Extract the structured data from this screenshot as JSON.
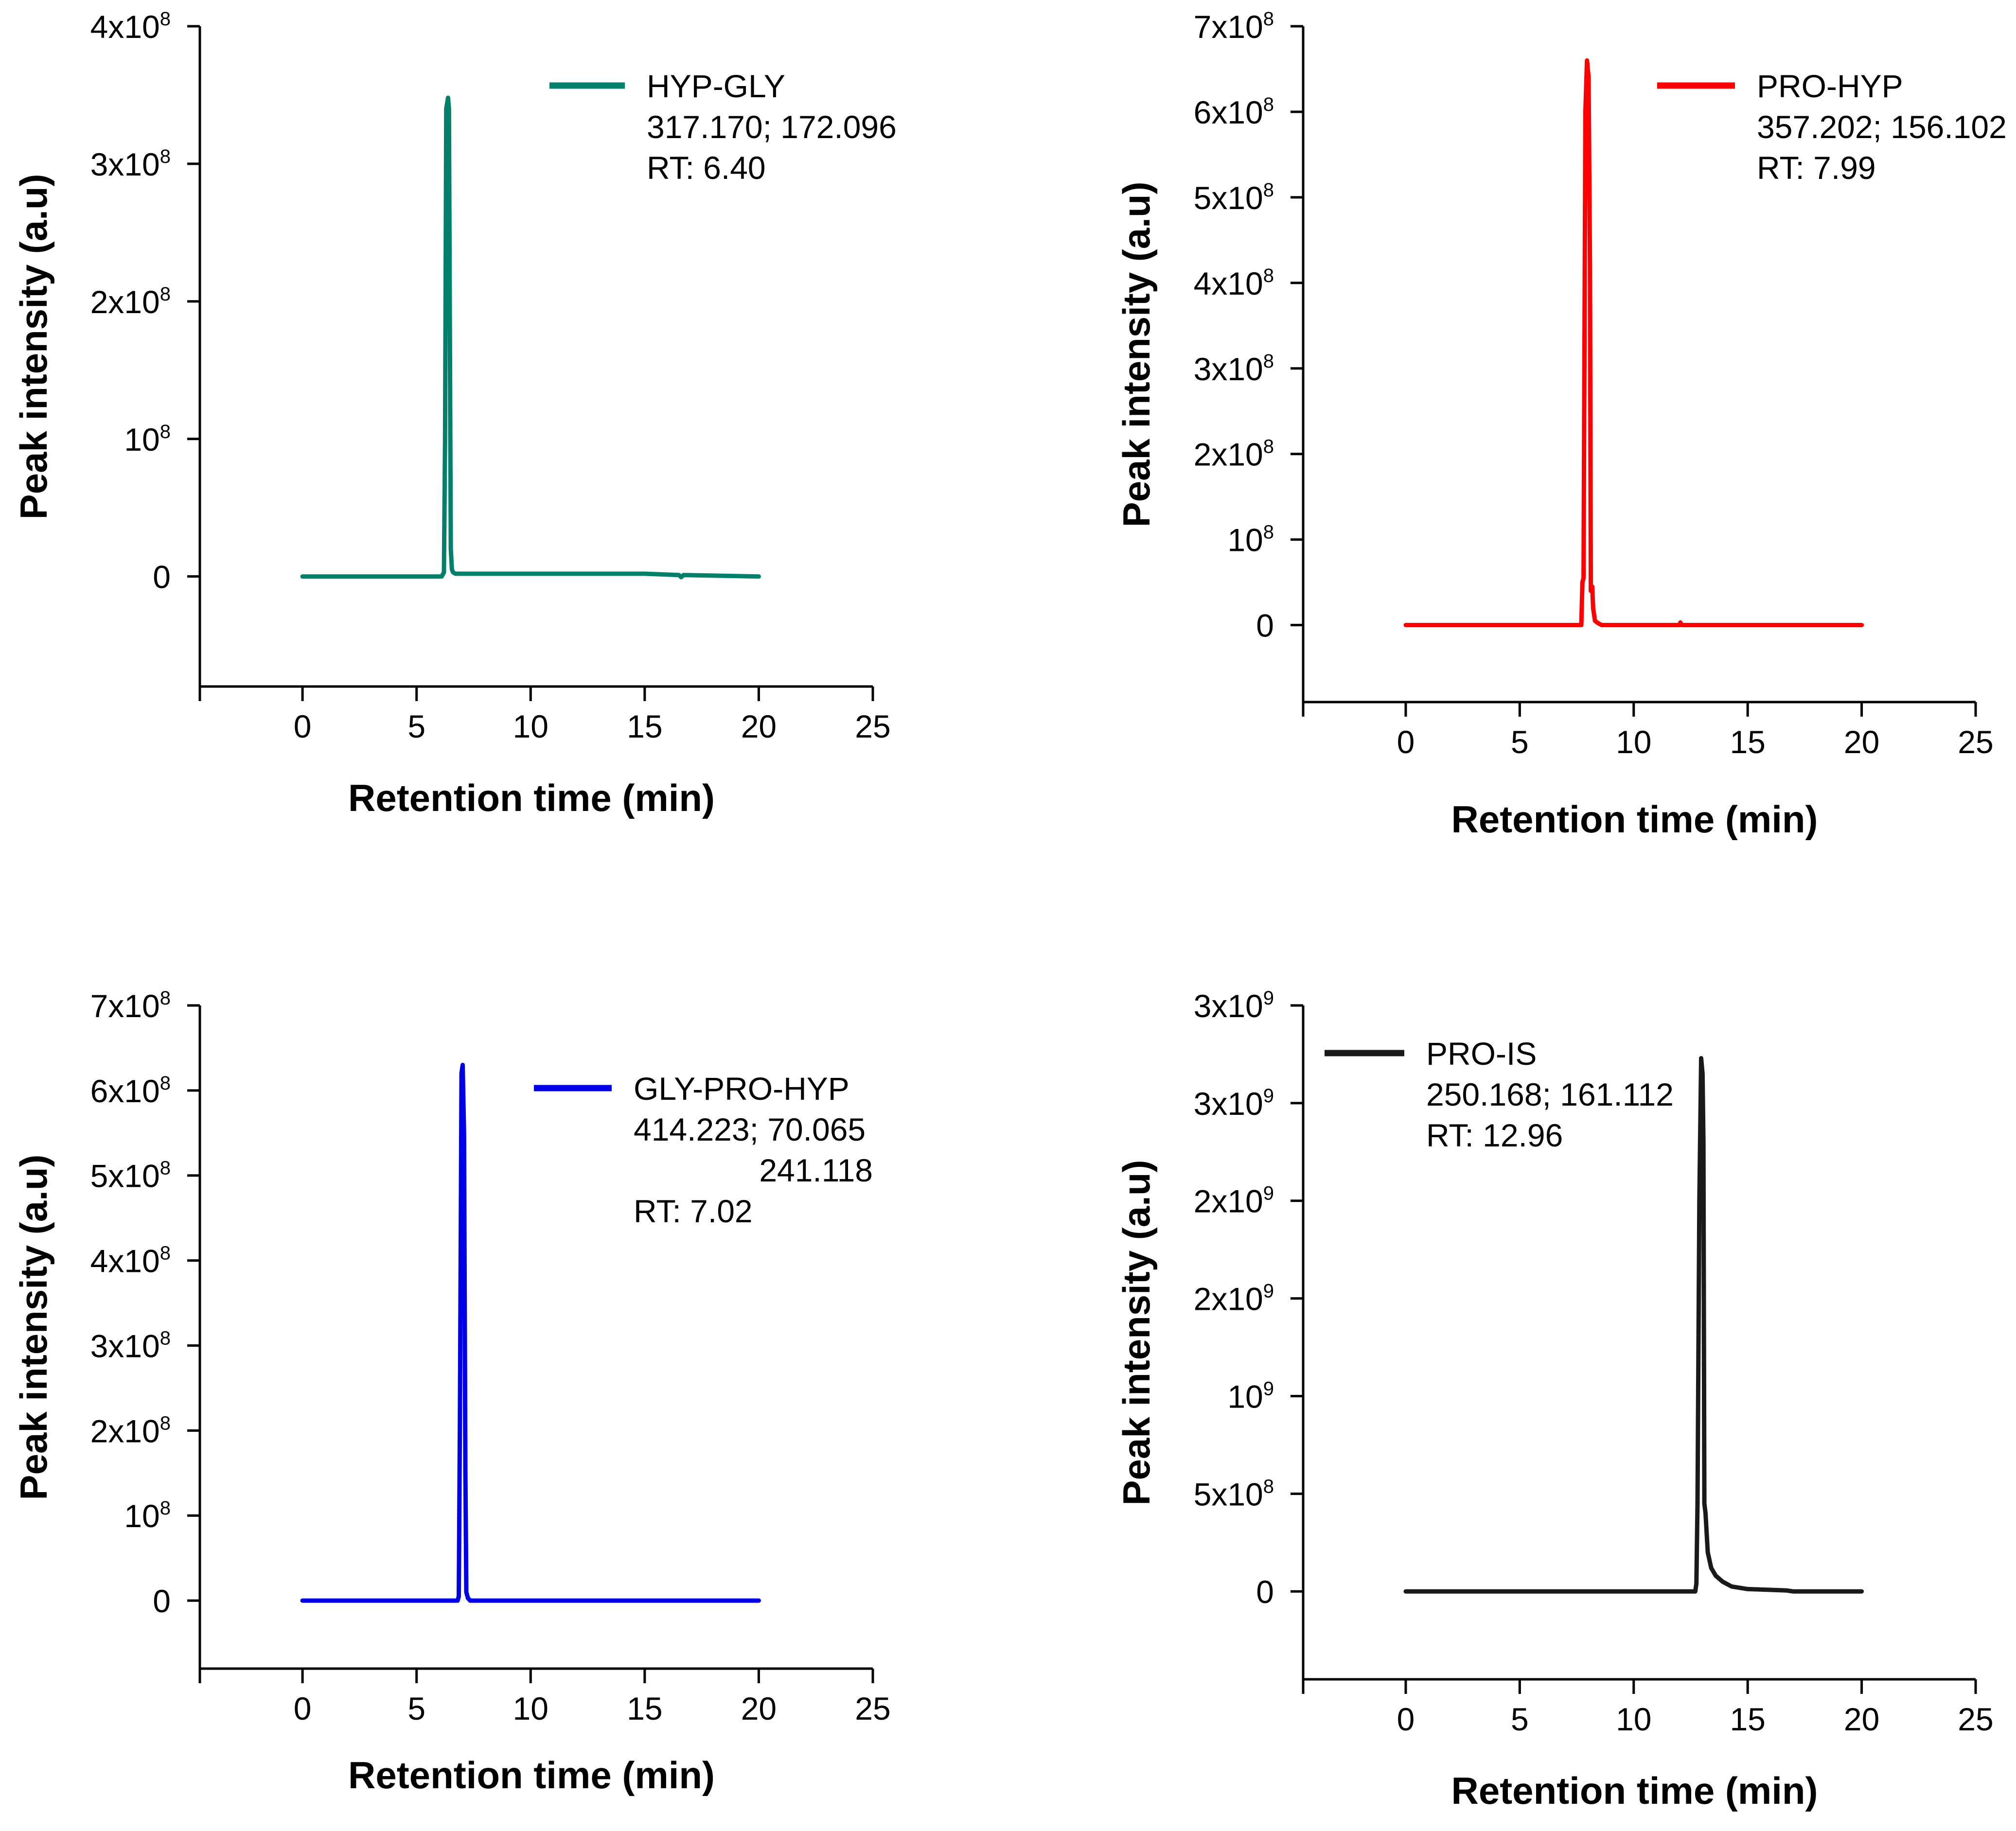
{
  "chart_data": [
    {
      "type": "line",
      "title": "",
      "xlabel": "Retention time (min)",
      "ylabel": "Peak intensity (a.u)",
      "xlim": [
        -4.5,
        25
      ],
      "ylim": [
        -80000000,
        400000000
      ],
      "x_ticks": [
        0,
        5,
        10,
        15,
        20,
        25
      ],
      "x_tick_labels": [
        "0",
        "5",
        "10",
        "15",
        "20",
        "25"
      ],
      "y_ticks": [
        {
          "value": 0,
          "base": "0",
          "exp": ""
        },
        {
          "value": 100000000,
          "base": "10",
          "exp": "8"
        },
        {
          "value": 200000000,
          "base": "2x10",
          "exp": "8"
        },
        {
          "value": 300000000,
          "base": "3x10",
          "exp": "8"
        },
        {
          "value": 400000000,
          "base": "4x10",
          "exp": "8"
        }
      ],
      "color": "#00806a",
      "legend": {
        "name": "HYP-GLY",
        "lines": [
          "317.170; 172.096",
          "RT: 6.40"
        ],
        "placement": "top-right"
      },
      "series": [
        {
          "name": "HYP-GLY",
          "x": [
            0,
            6.1,
            6.2,
            6.25,
            6.3,
            6.38,
            6.42,
            6.48,
            6.5,
            6.55,
            6.6,
            6.7,
            10,
            15,
            16.5,
            16.6,
            16.7,
            20
          ],
          "y": [
            0,
            0,
            3000000,
            100000000,
            340000000,
            348000000,
            340000000,
            100000000,
            20000000,
            5000000,
            3000000,
            2000000,
            2000000,
            2000000,
            1000000,
            -500000,
            1000000,
            0
          ]
        }
      ]
    },
    {
      "type": "line",
      "title": "",
      "xlabel": "Retention time (min)",
      "ylabel": "Peak intensity (a.u)",
      "xlim": [
        -4.5,
        25
      ],
      "ylim": [
        -90000000,
        700000000
      ],
      "x_ticks": [
        0,
        5,
        10,
        15,
        20,
        25
      ],
      "x_tick_labels": [
        "0",
        "5",
        "10",
        "15",
        "20",
        "25"
      ],
      "y_ticks": [
        {
          "value": 0,
          "base": "0",
          "exp": ""
        },
        {
          "value": 100000000,
          "base": "10",
          "exp": "8"
        },
        {
          "value": 200000000,
          "base": "2x10",
          "exp": "8"
        },
        {
          "value": 300000000,
          "base": "3x10",
          "exp": "8"
        },
        {
          "value": 400000000,
          "base": "4x10",
          "exp": "8"
        },
        {
          "value": 500000000,
          "base": "5x10",
          "exp": "8"
        },
        {
          "value": 600000000,
          "base": "6x10",
          "exp": "8"
        },
        {
          "value": 700000000,
          "base": "7x10",
          "exp": "8"
        }
      ],
      "color": "#ff0000",
      "legend": {
        "name": "PRO-HYP",
        "lines": [
          "357.202; 156.102",
          "RT: 7.99"
        ],
        "placement": "top-right"
      },
      "series": [
        {
          "name": "PRO-HYP",
          "x": [
            0,
            7.7,
            7.75,
            7.8,
            7.88,
            7.95,
            8.02,
            8.08,
            8.12,
            8.18,
            8.22,
            8.3,
            8.45,
            8.6,
            10,
            12,
            12.05,
            12.1,
            20
          ],
          "y": [
            0,
            0,
            50000000,
            55000000,
            600000000,
            660000000,
            640000000,
            420000000,
            40000000,
            45000000,
            20000000,
            5000000,
            2000000,
            0,
            0,
            0,
            3000000,
            0,
            0
          ]
        }
      ]
    },
    {
      "type": "line",
      "title": "",
      "xlabel": "Retention time (min)",
      "ylabel": "Peak intensity (a.u)",
      "xlim": [
        -4.5,
        25
      ],
      "ylim": [
        -80000000,
        700000000
      ],
      "x_ticks": [
        0,
        5,
        10,
        15,
        20,
        25
      ],
      "x_tick_labels": [
        "0",
        "5",
        "10",
        "15",
        "20",
        "25"
      ],
      "y_ticks": [
        {
          "value": 0,
          "base": "0",
          "exp": ""
        },
        {
          "value": 100000000,
          "base": "10",
          "exp": "8"
        },
        {
          "value": 200000000,
          "base": "2x10",
          "exp": "8"
        },
        {
          "value": 300000000,
          "base": "3x10",
          "exp": "8"
        },
        {
          "value": 400000000,
          "base": "4x10",
          "exp": "8"
        },
        {
          "value": 500000000,
          "base": "5x10",
          "exp": "8"
        },
        {
          "value": 600000000,
          "base": "6x10",
          "exp": "8"
        },
        {
          "value": 700000000,
          "base": "7x10",
          "exp": "8"
        }
      ],
      "color": "#0000e6",
      "legend": {
        "name": "GLY-PRO-HYP",
        "lines": [
          "414.223; 70.065",
          "241.118",
          "RT: 7.02"
        ],
        "placement": "top-right"
      },
      "series": [
        {
          "name": "GLY-PRO-HYP",
          "x": [
            0,
            6.8,
            6.85,
            6.9,
            6.97,
            7.02,
            7.08,
            7.14,
            7.18,
            7.25,
            7.35,
            10,
            15,
            20
          ],
          "y": [
            0,
            0,
            5000000,
            210000000,
            620000000,
            630000000,
            550000000,
            150000000,
            10000000,
            3000000,
            0,
            0,
            0,
            0
          ]
        }
      ]
    },
    {
      "type": "line",
      "title": "",
      "xlabel": "Retention time (min)",
      "ylabel": "Peak intensity (a.u)",
      "xlim": [
        -4.5,
        25
      ],
      "ylim": [
        -450000000,
        3000000000
      ],
      "x_ticks": [
        0,
        5,
        10,
        15,
        20,
        25
      ],
      "x_tick_labels": [
        "0",
        "5",
        "10",
        "15",
        "20",
        "25"
      ],
      "y_ticks": [
        {
          "value": 0,
          "base": "0",
          "exp": ""
        },
        {
          "value": 500000000,
          "base": "5x10",
          "exp": "8"
        },
        {
          "value": 1000000000,
          "base": "10",
          "exp": "9"
        },
        {
          "value": 1500000000,
          "base": "2x10",
          "exp": "9"
        },
        {
          "value": 2000000000,
          "base": "2x10",
          "exp": "9"
        },
        {
          "value": 2500000000,
          "base": "3x10",
          "exp": "9"
        },
        {
          "value": 3000000000,
          "base": "3x10",
          "exp": "9"
        }
      ],
      "color": "#1a1a1a",
      "legend": {
        "name": "PRO-IS",
        "lines": [
          "250.168; 161.112",
          "RT: 12.96"
        ],
        "placement": "top-left"
      },
      "series": [
        {
          "name": "PRO-IS",
          "x": [
            0,
            12.7,
            12.75,
            12.8,
            12.88,
            12.96,
            13.02,
            13.06,
            13.1,
            13.15,
            13.25,
            13.4,
            13.6,
            13.9,
            14.3,
            15,
            16,
            16.7,
            17,
            20
          ],
          "y": [
            0,
            0,
            40000000,
            450000000,
            2000000000,
            2730000000,
            2650000000,
            2300000000,
            450000000,
            400000000,
            200000000,
            120000000,
            80000000,
            50000000,
            25000000,
            12000000,
            8000000,
            5000000,
            0,
            0
          ]
        }
      ]
    }
  ]
}
